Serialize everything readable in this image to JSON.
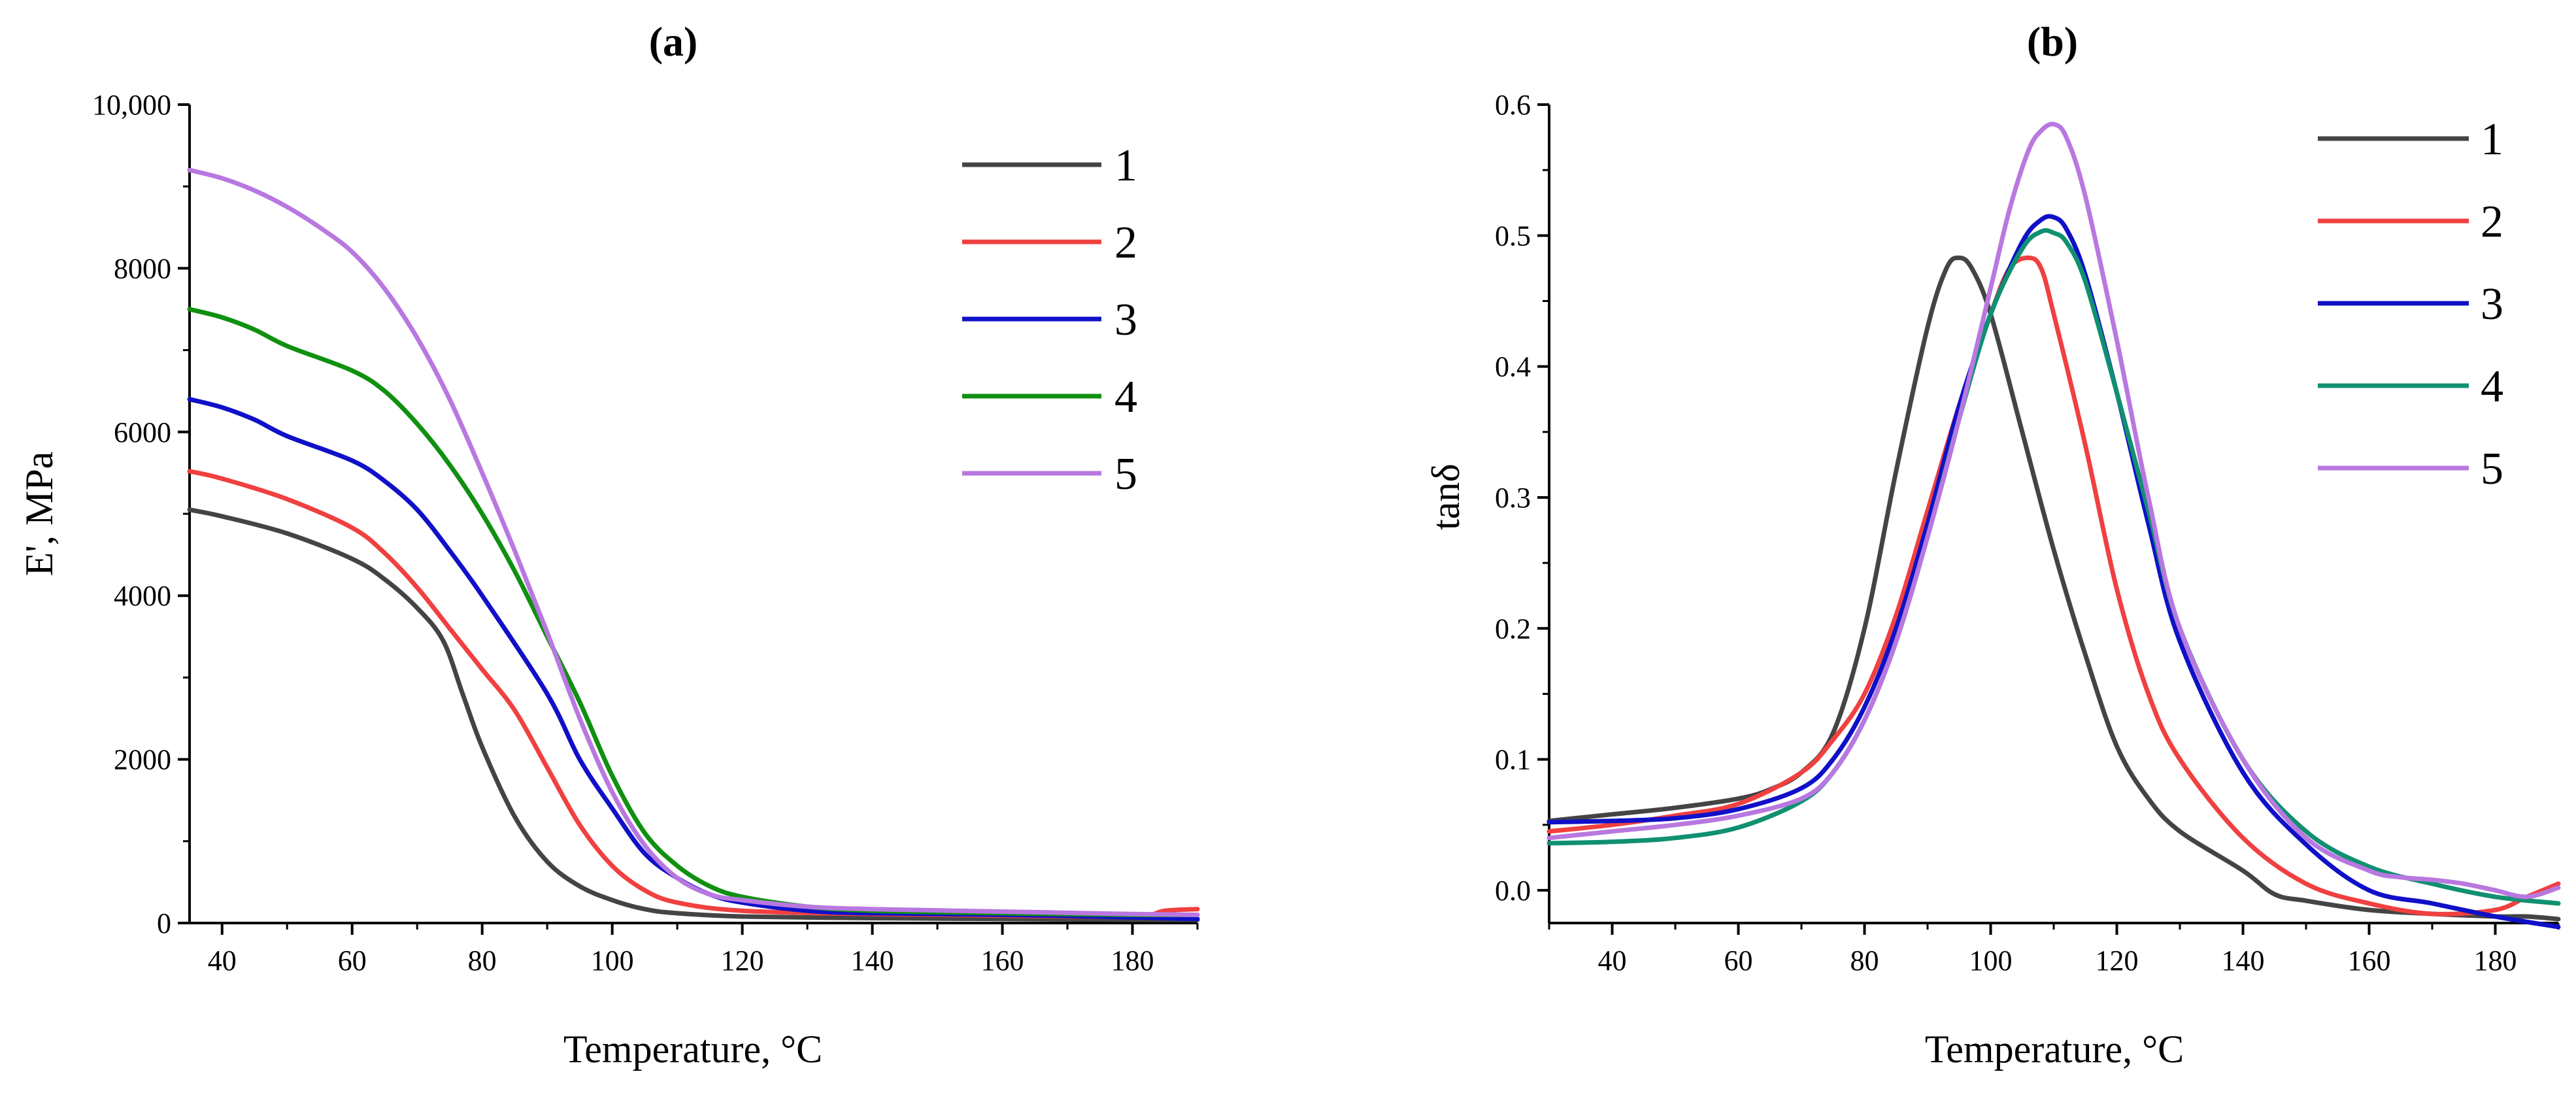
{
  "chart_data": [
    {
      "id": "a",
      "panel_label": "(a)",
      "type": "line",
      "xlabel": "Temperature, °C",
      "ylabel": "E', MPa",
      "xlim": [
        35,
        190
      ],
      "ylim": [
        0,
        10000
      ],
      "xticks": [
        40,
        60,
        80,
        100,
        120,
        140,
        160,
        180
      ],
      "yticks": [
        0,
        2000,
        4000,
        6000,
        8000,
        10000
      ],
      "ytick_labels": [
        "0",
        "2000",
        "4000",
        "6000",
        "8000",
        "10,000"
      ],
      "legend_position": "top-right",
      "series": [
        {
          "name": "1",
          "color": "#444444",
          "x": [
            35,
            40,
            50,
            60,
            65,
            70,
            74,
            77,
            80,
            85,
            90,
            95,
            100,
            105,
            110,
            120,
            140,
            160,
            180,
            190
          ],
          "y": [
            5050,
            4970,
            4760,
            4450,
            4200,
            3850,
            3450,
            2800,
            2150,
            1300,
            750,
            450,
            280,
            170,
            120,
            80,
            60,
            50,
            40,
            40
          ]
        },
        {
          "name": "2",
          "color": "#f04040",
          "x": [
            35,
            40,
            50,
            60,
            65,
            70,
            75,
            80,
            85,
            90,
            95,
            100,
            105,
            110,
            120,
            140,
            160,
            180,
            185,
            190
          ],
          "y": [
            5520,
            5430,
            5180,
            4830,
            4520,
            4100,
            3600,
            3100,
            2600,
            1900,
            1200,
            700,
            400,
            250,
            150,
            110,
            90,
            80,
            150,
            170
          ]
        },
        {
          "name": "3",
          "color": "#1010c8",
          "x": [
            35,
            40,
            45,
            50,
            60,
            65,
            70,
            75,
            80,
            90,
            95,
            100,
            105,
            110,
            115,
            120,
            130,
            140,
            160,
            180,
            190
          ],
          "y": [
            6400,
            6300,
            6150,
            5950,
            5650,
            5400,
            5050,
            4550,
            4000,
            2800,
            2000,
            1400,
            850,
            550,
            350,
            250,
            150,
            120,
            100,
            70,
            50
          ]
        },
        {
          "name": "4",
          "color": "#109010",
          "x": [
            35,
            40,
            45,
            50,
            60,
            65,
            70,
            75,
            80,
            85,
            90,
            95,
            100,
            105,
            110,
            115,
            120,
            130,
            140,
            160,
            180,
            190
          ],
          "y": [
            7500,
            7400,
            7250,
            7050,
            6750,
            6500,
            6100,
            5600,
            5000,
            4300,
            3500,
            2700,
            1800,
            1100,
            700,
            450,
            320,
            200,
            150,
            120,
            100,
            100
          ]
        },
        {
          "name": "5",
          "color": "#b878e0",
          "x": [
            35,
            40,
            45,
            50,
            55,
            60,
            65,
            70,
            75,
            80,
            85,
            90,
            95,
            100,
            105,
            110,
            115,
            120,
            130,
            140,
            160,
            180,
            190
          ],
          "y": [
            9200,
            9100,
            8950,
            8750,
            8500,
            8200,
            7750,
            7150,
            6400,
            5500,
            4550,
            3550,
            2500,
            1600,
            950,
            550,
            350,
            280,
            200,
            170,
            140,
            110,
            100
          ]
        }
      ]
    },
    {
      "id": "b",
      "panel_label": "(b)",
      "type": "line",
      "xlabel": "Temperature, °C",
      "ylabel": "tanδ",
      "xlim": [
        30,
        190
      ],
      "ylim": [
        -0.025,
        0.6
      ],
      "xticks": [
        40,
        60,
        80,
        100,
        120,
        140,
        160,
        180
      ],
      "yticks": [
        0.0,
        0.1,
        0.2,
        0.3,
        0.4,
        0.5,
        0.6
      ],
      "ytick_labels": [
        "0.0",
        "0.1",
        "0.2",
        "0.3",
        "0.4",
        "0.5",
        "0.6"
      ],
      "legend_position": "top-right",
      "series": [
        {
          "name": "1",
          "color": "#444444",
          "x": [
            30,
            40,
            50,
            60,
            65,
            70,
            75,
            80,
            85,
            90,
            93,
            95,
            97,
            100,
            105,
            110,
            115,
            120,
            125,
            130,
            140,
            145,
            150,
            160,
            170,
            180,
            185,
            190
          ],
          "y": [
            0.053,
            0.058,
            0.063,
            0.07,
            0.077,
            0.09,
            0.12,
            0.2,
            0.32,
            0.43,
            0.475,
            0.483,
            0.475,
            0.44,
            0.35,
            0.26,
            0.18,
            0.11,
            0.07,
            0.045,
            0.015,
            -0.003,
            -0.008,
            -0.015,
            -0.018,
            -0.02,
            -0.02,
            -0.022
          ]
        },
        {
          "name": "2",
          "color": "#f04040",
          "x": [
            30,
            40,
            50,
            60,
            70,
            75,
            80,
            85,
            90,
            95,
            100,
            103,
            106,
            108,
            110,
            115,
            120,
            125,
            130,
            140,
            150,
            160,
            170,
            180,
            185,
            190
          ],
          "y": [
            0.045,
            0.05,
            0.057,
            0.066,
            0.09,
            0.115,
            0.15,
            0.21,
            0.29,
            0.37,
            0.44,
            0.475,
            0.483,
            0.475,
            0.44,
            0.34,
            0.23,
            0.15,
            0.1,
            0.04,
            0.005,
            -0.01,
            -0.018,
            -0.015,
            -0.005,
            0.005
          ]
        },
        {
          "name": "3",
          "color": "#1010c8",
          "x": [
            30,
            40,
            50,
            60,
            70,
            75,
            80,
            85,
            90,
            95,
            100,
            105,
            108,
            110,
            112,
            115,
            120,
            125,
            130,
            140,
            150,
            160,
            170,
            180,
            190
          ],
          "y": [
            0.052,
            0.053,
            0.055,
            0.062,
            0.078,
            0.1,
            0.14,
            0.2,
            0.28,
            0.37,
            0.44,
            0.495,
            0.512,
            0.514,
            0.505,
            0.47,
            0.38,
            0.28,
            0.19,
            0.09,
            0.035,
            0.0,
            -0.01,
            -0.02,
            -0.028
          ]
        },
        {
          "name": "4",
          "color": "#109070",
          "x": [
            30,
            40,
            50,
            60,
            70,
            75,
            80,
            85,
            90,
            95,
            100,
            105,
            108,
            110,
            112,
            115,
            120,
            125,
            130,
            140,
            150,
            160,
            170,
            180,
            190
          ],
          "y": [
            0.036,
            0.037,
            0.04,
            0.048,
            0.068,
            0.09,
            0.13,
            0.19,
            0.27,
            0.36,
            0.44,
            0.49,
            0.503,
            0.502,
            0.495,
            0.465,
            0.38,
            0.29,
            0.2,
            0.1,
            0.045,
            0.018,
            0.005,
            -0.005,
            -0.01
          ]
        },
        {
          "name": "5",
          "color": "#b878e0",
          "x": [
            30,
            40,
            50,
            60,
            70,
            75,
            80,
            85,
            90,
            95,
            100,
            103,
            106,
            108,
            110,
            112,
            115,
            120,
            125,
            130,
            140,
            150,
            160,
            165,
            170,
            175,
            180,
            185,
            190
          ],
          "y": [
            0.04,
            0.045,
            0.05,
            0.057,
            0.07,
            0.09,
            0.13,
            0.19,
            0.27,
            0.36,
            0.46,
            0.52,
            0.565,
            0.58,
            0.585,
            0.575,
            0.53,
            0.42,
            0.3,
            0.2,
            0.1,
            0.04,
            0.015,
            0.01,
            0.008,
            0.005,
            0.0,
            -0.005,
            0.002
          ]
        }
      ]
    }
  ]
}
